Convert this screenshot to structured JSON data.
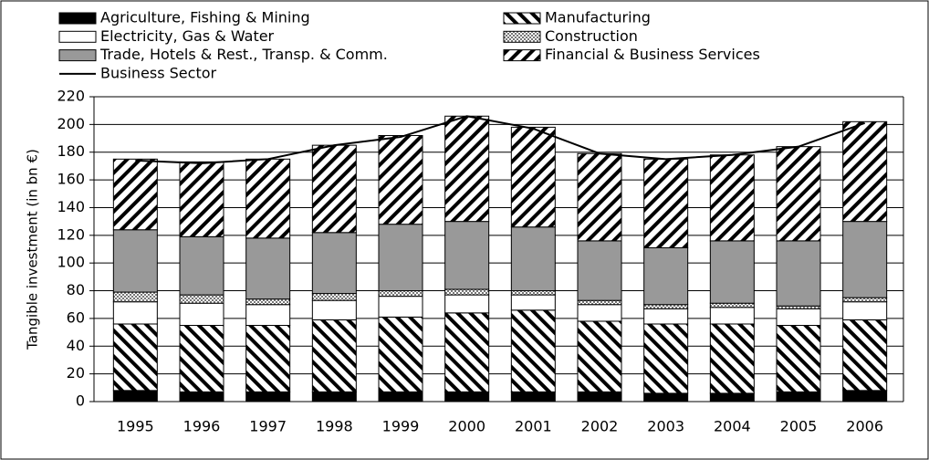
{
  "chart_data": {
    "type": "stacked_bar",
    "y_label": "Tangible investment (in bn €)",
    "categories": [
      "1995",
      "1996",
      "1997",
      "1998",
      "1999",
      "2000",
      "2001",
      "2002",
      "2003",
      "2004",
      "2005",
      "2006"
    ],
    "ylim": [
      0,
      220
    ],
    "yticks": [
      0,
      20,
      40,
      60,
      80,
      100,
      120,
      140,
      160,
      180,
      200,
      220
    ],
    "grid": true,
    "series": [
      {
        "name": "Agriculture, Fishing & Mining",
        "color": "#000000",
        "pattern": "solid",
        "values": [
          8,
          7,
          7,
          7,
          7,
          7,
          7,
          7,
          6,
          6,
          7,
          8
        ]
      },
      {
        "name": "Manufacturing",
        "color": "#000000",
        "pattern": "back-diagonal",
        "values": [
          48,
          48,
          48,
          52,
          54,
          57,
          59,
          51,
          50,
          50,
          48,
          51
        ]
      },
      {
        "name": "Electricity, Gas & Water",
        "color": "#ffffff",
        "pattern": "solid",
        "values": [
          16,
          16,
          15,
          14,
          15,
          13,
          11,
          12,
          11,
          12,
          12,
          13
        ]
      },
      {
        "name": "Construction",
        "color": "#808080",
        "pattern": "crosshatch",
        "values": [
          7,
          6,
          4,
          5,
          4,
          4,
          3,
          3,
          3,
          3,
          2,
          3
        ]
      },
      {
        "name": "Trade, Hotels & Rest., Transp. & Comm.",
        "color": "#999999",
        "pattern": "solid",
        "values": [
          45,
          42,
          44,
          44,
          48,
          49,
          46,
          43,
          41,
          45,
          47,
          55
        ]
      },
      {
        "name": "Financial & Business Services",
        "color": "#000000",
        "pattern": "forward-diagonal",
        "values": [
          51,
          54,
          57,
          63,
          64,
          76,
          72,
          63,
          64,
          62,
          68,
          72
        ]
      },
      {
        "name": "Business Sector",
        "type": "line",
        "color": "#000000",
        "values": [
          174,
          172,
          175,
          185,
          191,
          206,
          197,
          179,
          175,
          178,
          184,
          201
        ]
      }
    ]
  }
}
